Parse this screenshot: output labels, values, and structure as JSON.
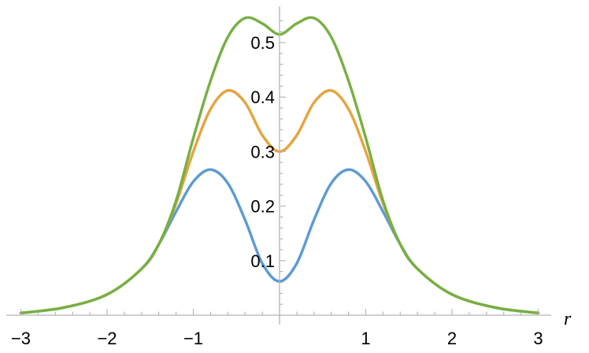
{
  "chart_data": {
    "type": "line",
    "title": "",
    "xlabel": "r",
    "ylabel": "",
    "xlim": [
      -3.05,
      3.05
    ],
    "ylim": [
      0,
      0.56
    ],
    "grid": false,
    "x_ticks": [
      -3,
      -2,
      -1,
      1,
      2,
      3
    ],
    "x_tick_labels": [
      "−3",
      "−2",
      "−1",
      "1",
      "2",
      "3"
    ],
    "y_ticks": [
      0.1,
      0.2,
      0.3,
      0.4,
      0.5
    ],
    "y_tick_labels": [
      "0.1",
      "0.2",
      "0.3",
      "0.4",
      "0.5"
    ],
    "series": [
      {
        "color": "#5b9bd5",
        "points": [
          [
            -3,
            0.004
          ],
          [
            -2.5,
            0.014
          ],
          [
            -2,
            0.038
          ],
          [
            -1.6,
            0.085
          ],
          [
            -1.4,
            0.13
          ],
          [
            -1.2,
            0.19
          ],
          [
            -1,
            0.245
          ],
          [
            -0.8,
            0.267
          ],
          [
            -0.6,
            0.242
          ],
          [
            -0.4,
            0.175
          ],
          [
            -0.2,
            0.095
          ],
          [
            0,
            0.062
          ],
          [
            0.2,
            0.095
          ],
          [
            0.4,
            0.175
          ],
          [
            0.6,
            0.242
          ],
          [
            0.8,
            0.267
          ],
          [
            1,
            0.245
          ],
          [
            1.2,
            0.19
          ],
          [
            1.4,
            0.13
          ],
          [
            1.6,
            0.085
          ],
          [
            2,
            0.038
          ],
          [
            2.5,
            0.014
          ],
          [
            3,
            0.004
          ]
        ]
      },
      {
        "color": "#e8a33b",
        "points": [
          [
            -3,
            0.004
          ],
          [
            -2.5,
            0.014
          ],
          [
            -2,
            0.038
          ],
          [
            -1.6,
            0.085
          ],
          [
            -1.4,
            0.13
          ],
          [
            -1.2,
            0.205
          ],
          [
            -1,
            0.3
          ],
          [
            -0.8,
            0.378
          ],
          [
            -0.6,
            0.412
          ],
          [
            -0.4,
            0.39
          ],
          [
            -0.2,
            0.33
          ],
          [
            0,
            0.3
          ],
          [
            0.2,
            0.33
          ],
          [
            0.4,
            0.39
          ],
          [
            0.6,
            0.412
          ],
          [
            0.8,
            0.378
          ],
          [
            1,
            0.3
          ],
          [
            1.2,
            0.205
          ],
          [
            1.4,
            0.13
          ],
          [
            1.6,
            0.085
          ],
          [
            2,
            0.038
          ],
          [
            2.5,
            0.014
          ],
          [
            3,
            0.004
          ]
        ]
      },
      {
        "color": "#77b041",
        "points": [
          [
            -3,
            0.004
          ],
          [
            -2.5,
            0.014
          ],
          [
            -2,
            0.038
          ],
          [
            -1.6,
            0.085
          ],
          [
            -1.4,
            0.13
          ],
          [
            -1.2,
            0.21
          ],
          [
            -1,
            0.325
          ],
          [
            -0.8,
            0.43
          ],
          [
            -0.6,
            0.51
          ],
          [
            -0.4,
            0.545
          ],
          [
            -0.2,
            0.535
          ],
          [
            0,
            0.515
          ],
          [
            0.2,
            0.535
          ],
          [
            0.4,
            0.545
          ],
          [
            0.6,
            0.51
          ],
          [
            0.8,
            0.43
          ],
          [
            1,
            0.325
          ],
          [
            1.2,
            0.21
          ],
          [
            1.4,
            0.13
          ],
          [
            1.6,
            0.085
          ],
          [
            2,
            0.038
          ],
          [
            2.5,
            0.014
          ],
          [
            3,
            0.004
          ]
        ]
      }
    ]
  }
}
